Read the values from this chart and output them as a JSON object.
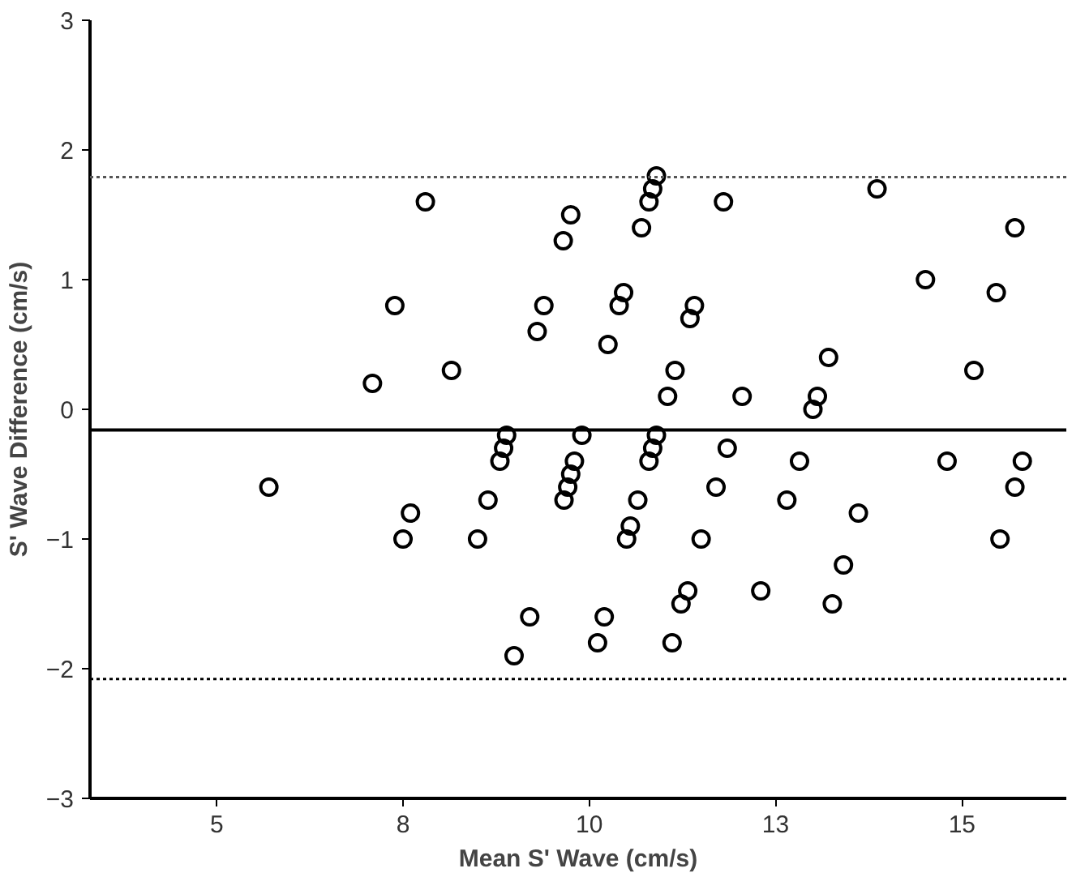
{
  "chart_data": {
    "type": "scatter",
    "xlabel": "Mean S' Wave (cm/s)",
    "ylabel": "S' Wave Difference (cm/s)",
    "xlim": [
      3.3,
      16.4
    ],
    "xticks": [
      5,
      {
        "value": 7.5,
        "label": "8"
      },
      10,
      {
        "value": 12.5,
        "label": "13"
      },
      15
    ],
    "ylim": [
      -3,
      3
    ],
    "yticks": [
      -3,
      -2,
      -1,
      0,
      1,
      2,
      3
    ],
    "grid": false,
    "marker": "circle",
    "ref_lines": [
      {
        "axis": "y",
        "value": -0.16,
        "color": "#000000",
        "line_style": "solid"
      },
      {
        "axis": "y",
        "value": 1.79,
        "color": "#555555",
        "line_style": "dotted"
      },
      {
        "axis": "y",
        "value": -2.08,
        "color": "#000000",
        "line_style": "dotted"
      }
    ],
    "series": [
      {
        "color": "#000000",
        "x": [
          5.7,
          7.5,
          7.6,
          8.5,
          8.64,
          8.8,
          8.85,
          8.89,
          8.99,
          7.09,
          7.39,
          7.8,
          8.15,
          9.2,
          9.3,
          9.39,
          9.65,
          9.75,
          9.66,
          9.71,
          9.75,
          9.8,
          9.9,
          10.11,
          10.2,
          10.25,
          10.4,
          10.46,
          10.5,
          10.55,
          10.65,
          10.7,
          10.8,
          10.85,
          10.9,
          10.8,
          10.85,
          10.9,
          11.05,
          11.15,
          11.11,
          11.23,
          11.32,
          11.35,
          11.41,
          11.5,
          11.7,
          11.8,
          11.85,
          12.05,
          12.3,
          12.65,
          12.82,
          13.0,
          13.06,
          13.21,
          13.26,
          13.41,
          13.61,
          13.86,
          14.51,
          14.8,
          15.16,
          15.46,
          15.51,
          15.71,
          15.71,
          15.81
        ],
        "values": [
          -0.6,
          -1.0,
          -0.8,
          -1.0,
          -0.7,
          -0.4,
          -0.3,
          -0.2,
          -1.9,
          0.2,
          0.8,
          1.6,
          0.3,
          -1.6,
          0.6,
          0.8,
          1.3,
          1.5,
          -0.7,
          -0.6,
          -0.5,
          -0.4,
          -0.2,
          -1.8,
          -1.6,
          0.5,
          0.8,
          0.9,
          -1.0,
          -0.9,
          -0.7,
          1.4,
          1.6,
          1.7,
          1.8,
          -0.4,
          -0.3,
          -0.2,
          0.1,
          0.3,
          -1.8,
          -1.5,
          -1.4,
          0.7,
          0.8,
          -1.0,
          -0.6,
          1.6,
          -0.3,
          0.1,
          -1.4,
          -0.7,
          -0.4,
          0.0,
          0.1,
          0.4,
          -1.5,
          -1.2,
          -0.8,
          1.7,
          1.0,
          -0.4,
          0.3,
          0.9,
          -1.0,
          1.4,
          -0.6,
          -0.4
        ]
      }
    ]
  }
}
